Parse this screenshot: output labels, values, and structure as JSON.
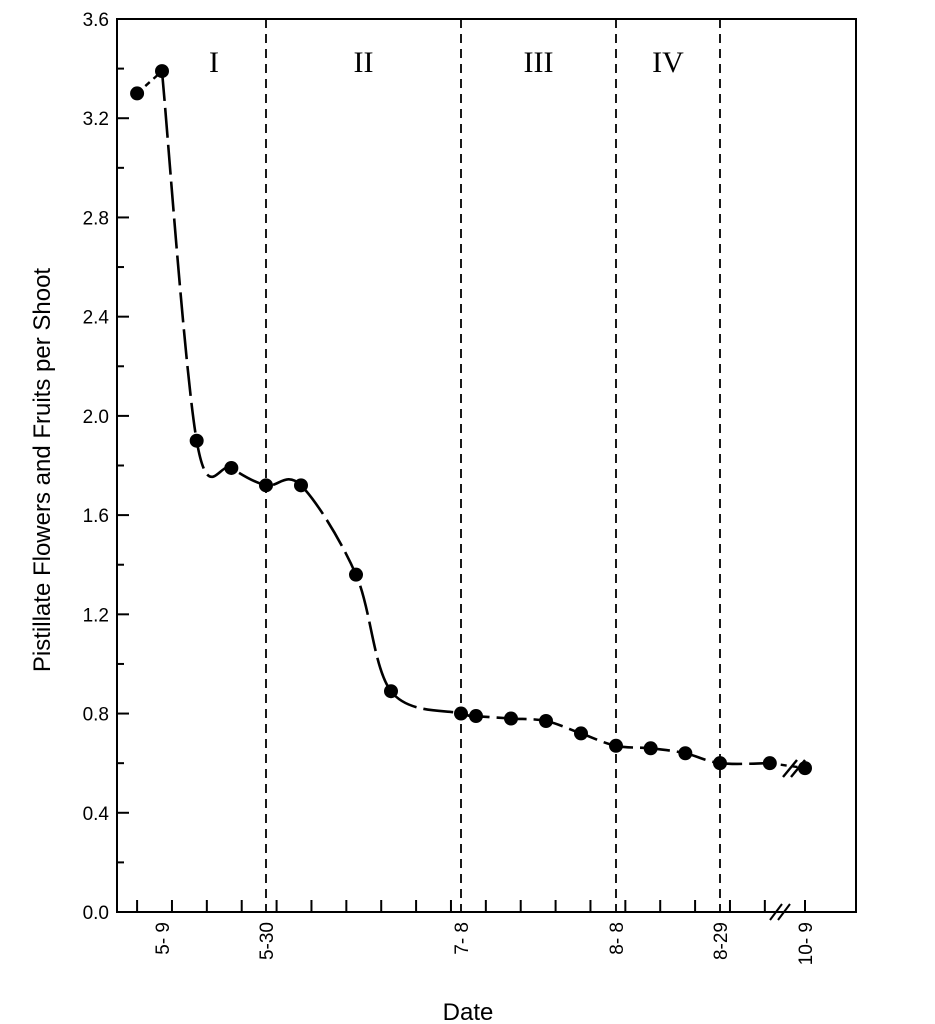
{
  "chart_data": {
    "type": "line",
    "title": "",
    "xlabel": "Date",
    "ylabel": "Pistillate Flowers and Fruits per Shoot",
    "ylim": [
      0.0,
      3.6
    ],
    "y_ticks": [
      0.0,
      0.4,
      0.8,
      1.2,
      1.6,
      2.0,
      2.4,
      2.8,
      3.2,
      3.6
    ],
    "y_tick_labels": [
      "0.0",
      "0.4",
      "0.8",
      "1.2",
      "1.6",
      "2.0",
      "2.4",
      "2.8",
      "3.2",
      "3.6"
    ],
    "x_date_ticks": [
      {
        "label": "5- 9",
        "date": "5-9"
      },
      {
        "label": "5-30",
        "date": "5-30"
      },
      {
        "label": "7- 8",
        "date": "7-8"
      },
      {
        "label": "8- 8",
        "date": "8-8"
      },
      {
        "label": "8-29",
        "date": "8-29"
      },
      {
        "label": "10- 9",
        "date": "10-9"
      }
    ],
    "axis_break": "between 8-29 and 10-9",
    "periods": [
      {
        "label": "I",
        "from": "5-9",
        "to": "5-30"
      },
      {
        "label": "II",
        "from": "5-30",
        "to": "7-8"
      },
      {
        "label": "III",
        "from": "7-8",
        "to": "8-8"
      },
      {
        "label": "IV",
        "from": "8-8",
        "to": "8-29"
      }
    ],
    "period_boundaries": [
      "5-30",
      "7-8",
      "8-8",
      "8-29"
    ],
    "series": [
      {
        "points": [
          {
            "date": "5-4",
            "y": 3.3
          },
          {
            "date": "5-9",
            "y": 3.39
          },
          {
            "date": "5-16",
            "y": 1.9
          },
          {
            "date": "5-23",
            "y": 1.79
          },
          {
            "date": "5-30",
            "y": 1.72
          },
          {
            "date": "6-6",
            "y": 1.72
          },
          {
            "date": "6-17",
            "y": 1.36
          },
          {
            "date": "6-24",
            "y": 0.89
          },
          {
            "date": "7-8",
            "y": 0.8
          },
          {
            "date": "7-11",
            "y": 0.79
          },
          {
            "date": "7-18",
            "y": 0.78
          },
          {
            "date": "7-25",
            "y": 0.77
          },
          {
            "date": "8-1",
            "y": 0.72
          },
          {
            "date": "8-8",
            "y": 0.67
          },
          {
            "date": "8-15",
            "y": 0.66
          },
          {
            "date": "8-22",
            "y": 0.64
          },
          {
            "date": "8-29",
            "y": 0.6
          },
          {
            "date": "9-8",
            "y": 0.6
          },
          {
            "date": "10-9",
            "y": 0.58
          }
        ]
      }
    ],
    "grid": false,
    "legend": "none"
  }
}
